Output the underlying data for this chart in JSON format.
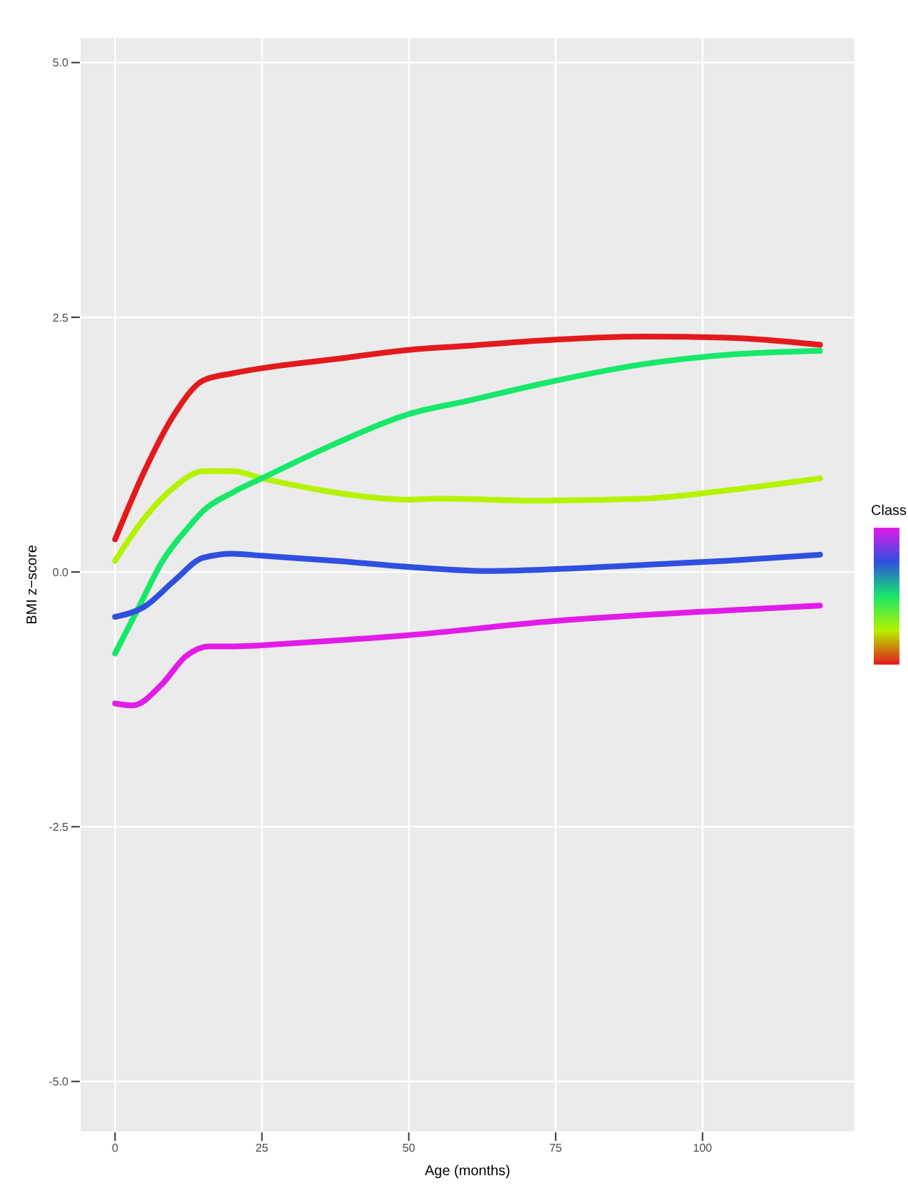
{
  "chart_data": {
    "type": "line",
    "xlabel": "Age (months)",
    "ylabel": "BMI z−score",
    "clabel": "Class",
    "xlim": [
      -6,
      126
    ],
    "xticks": [
      0,
      25,
      50,
      75,
      100
    ],
    "ylim": [
      -5.5,
      5.25
    ],
    "yticks": [
      {
        "value": -5,
        "label": "-5.0"
      },
      {
        "value": -2.5,
        "label": "-2.5"
      },
      {
        "value": 0,
        "label": "0.0"
      },
      {
        "value": 2.5,
        "label": "2.5"
      },
      {
        "value": 5,
        "label": "5.0"
      }
    ],
    "grid": true,
    "marker": "none",
    "line_style": "solid",
    "series": [
      {
        "color": "#e31a1c",
        "x": [
          0,
          5,
          10,
          15,
          20,
          25,
          37.5,
          50,
          60,
          72,
          90,
          104,
          120
        ],
        "values": [
          0.32,
          0.99,
          1.54,
          1.88,
          1.95,
          2.0,
          2.09,
          2.18,
          2.22,
          2.27,
          2.31,
          2.3,
          2.23
        ]
      },
      {
        "color": "#b5f200",
        "x": [
          0,
          5,
          10,
          15,
          20,
          25,
          37.5,
          50,
          55,
          72,
          90,
          104,
          120
        ],
        "values": [
          0.11,
          0.53,
          0.83,
          0.99,
          0.99,
          0.92,
          0.78,
          0.71,
          0.72,
          0.7,
          0.72,
          0.8,
          0.92
        ]
      },
      {
        "color": "#17e86a",
        "x": [
          0,
          4,
          8,
          12.5,
          15,
          20,
          25,
          37.5,
          50,
          60,
          72,
          90,
          104,
          120
        ],
        "values": [
          -0.8,
          -0.35,
          0.1,
          0.44,
          0.6,
          0.78,
          0.92,
          1.26,
          1.55,
          1.68,
          1.84,
          2.04,
          2.13,
          2.17
        ]
      },
      {
        "color": "#2f4fe0",
        "x": [
          0,
          5,
          10,
          15,
          20,
          25,
          37.5,
          50,
          63,
          90,
          104,
          120
        ],
        "values": [
          -0.44,
          -0.34,
          -0.09,
          0.14,
          0.18,
          0.16,
          0.11,
          0.05,
          0.01,
          0.07,
          0.11,
          0.17
        ]
      },
      {
        "color": "#e21ce8",
        "x": [
          0,
          3,
          8,
          12,
          16,
          20,
          30,
          50,
          75,
          100,
          120
        ],
        "values": [
          -1.29,
          -1.31,
          -1.1,
          -0.83,
          -0.73,
          -0.73,
          -0.7,
          -0.62,
          -0.48,
          -0.39,
          -0.33
        ]
      }
    ]
  }
}
